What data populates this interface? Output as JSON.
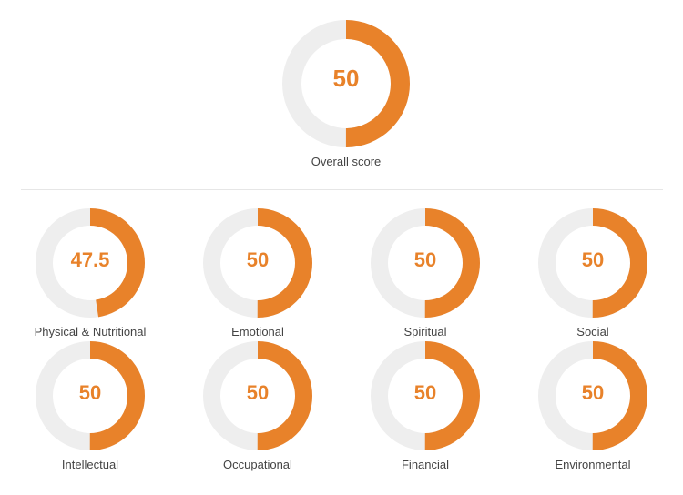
{
  "colors": {
    "accent": "#e8822a",
    "track": "#eeeeee",
    "label": "#444444"
  },
  "overall": {
    "label": "Overall score",
    "value": "50",
    "score": 50
  },
  "categories": [
    {
      "label": "Physical & Nutritional",
      "value": "47.5",
      "score": 47.5
    },
    {
      "label": "Emotional",
      "value": "50",
      "score": 50
    },
    {
      "label": "Spiritual",
      "value": "50",
      "score": 50
    },
    {
      "label": "Social",
      "value": "50",
      "score": 50
    },
    {
      "label": "Intellectual",
      "value": "50",
      "score": 50
    },
    {
      "label": "Occupational",
      "value": "50",
      "score": 50
    },
    {
      "label": "Financial",
      "value": "50",
      "score": 50
    },
    {
      "label": "Environmental",
      "value": "50",
      "score": 50
    }
  ]
}
